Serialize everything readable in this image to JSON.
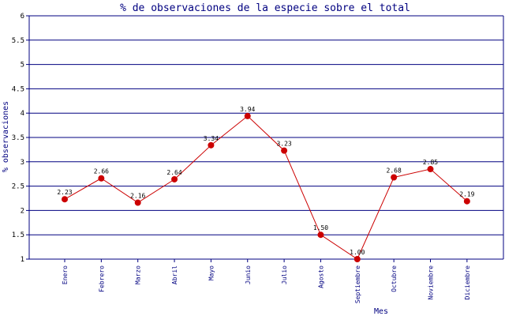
{
  "chart_data": {
    "type": "line",
    "title": "% de observaciones de la especie sobre el total",
    "xlabel": "Mes",
    "ylabel": "% observaciones",
    "categories": [
      "Enero",
      "Febrero",
      "Marzo",
      "Abril",
      "Mayo",
      "Junio",
      "Julio",
      "Agosto",
      "Septiembre",
      "Octubre",
      "Noviembre",
      "Diciembre"
    ],
    "values": [
      2.23,
      2.66,
      2.16,
      2.64,
      3.34,
      3.94,
      3.23,
      1.5,
      1.0,
      2.68,
      2.85,
      2.19
    ],
    "value_labels": [
      "2.23",
      "2.66",
      "2.16",
      "2.64",
      "3.34",
      "3.94",
      "3.23",
      "1.50",
      "1.00",
      "2.68",
      "2.85",
      "2.19"
    ],
    "ylim": [
      1,
      6
    ],
    "y_ticks": [
      "1",
      "1.5",
      "2",
      "2.5",
      "3",
      "3.5",
      "4",
      "4.5",
      "5",
      "5.5",
      "6"
    ],
    "grid": true,
    "colors": {
      "title": "#000080",
      "axis_label": "#000080",
      "gridline": "#000080",
      "line": "#cc0000",
      "marker": "#cc0000",
      "text": "#000000"
    }
  }
}
